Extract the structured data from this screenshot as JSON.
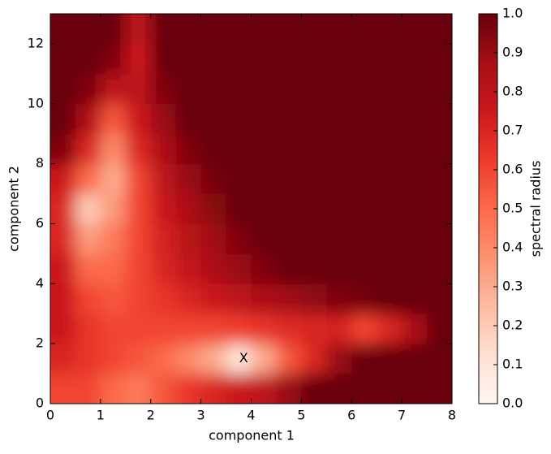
{
  "chart_data": {
    "type": "heatmap",
    "xlabel": "component 1",
    "ylabel": "component 2",
    "colorbar_label": "spectral radius",
    "x": [
      0.25,
      0.75,
      1.25,
      1.75,
      2.25,
      2.75,
      3.25,
      3.75,
      4.25,
      4.75,
      5.25,
      5.75,
      6.25,
      6.75,
      7.25,
      7.75
    ],
    "y": [
      0.5,
      1.5,
      2.5,
      3.5,
      4.5,
      5.5,
      6.5,
      7.5,
      8.5,
      9.5,
      10.5,
      11.5,
      12.5
    ],
    "z": [
      [
        0.6,
        0.6,
        0.5,
        0.45,
        0.55,
        0.65,
        0.7,
        0.75,
        0.8,
        0.9,
        1,
        1,
        1,
        1,
        1,
        1
      ],
      [
        0.7,
        0.65,
        0.6,
        0.55,
        0.5,
        0.4,
        0.3,
        0.1,
        0.3,
        0.55,
        0.7,
        0.9,
        1,
        1,
        1,
        1
      ],
      [
        0.75,
        0.65,
        0.6,
        0.6,
        0.6,
        0.6,
        0.6,
        0.62,
        0.65,
        0.68,
        0.7,
        0.72,
        0.6,
        0.7,
        0.85,
        1
      ],
      [
        0.75,
        0.6,
        0.55,
        0.6,
        0.65,
        0.7,
        0.75,
        0.8,
        0.85,
        0.88,
        0.92,
        0.95,
        0.97,
        1,
        1,
        1
      ],
      [
        0.75,
        0.5,
        0.5,
        0.6,
        0.7,
        0.78,
        0.85,
        0.9,
        0.95,
        1,
        1,
        1,
        1,
        1,
        1,
        1
      ],
      [
        0.7,
        0.35,
        0.45,
        0.6,
        0.72,
        0.82,
        0.88,
        0.95,
        1,
        1,
        1,
        1,
        1,
        1,
        1,
        1
      ],
      [
        0.7,
        0.2,
        0.35,
        0.6,
        0.75,
        0.85,
        0.93,
        1,
        1,
        1,
        1,
        1,
        1,
        1,
        1,
        1
      ],
      [
        0.75,
        0.5,
        0.3,
        0.6,
        0.8,
        0.9,
        0.97,
        1,
        1,
        1,
        1,
        1,
        1,
        1,
        1,
        1
      ],
      [
        0.95,
        0.7,
        0.4,
        0.7,
        0.85,
        0.95,
        1,
        1,
        1,
        1,
        1,
        1,
        1,
        1,
        1,
        1
      ],
      [
        1,
        0.85,
        0.55,
        0.75,
        0.9,
        1,
        1,
        1,
        1,
        1,
        1,
        1,
        1,
        1,
        1,
        1
      ],
      [
        1,
        0.95,
        0.8,
        0.8,
        0.95,
        1,
        1,
        1,
        1,
        1,
        1,
        1,
        1,
        1,
        1,
        1
      ],
      [
        1,
        1,
        0.95,
        0.75,
        1,
        1,
        1,
        1,
        1,
        1,
        1,
        1,
        1,
        1,
        1,
        1
      ],
      [
        1,
        1,
        1,
        0.8,
        1,
        1,
        1,
        1,
        1,
        1,
        1,
        1,
        1,
        1,
        1,
        1
      ]
    ],
    "xlim": [
      0,
      8
    ],
    "xticks": [
      0,
      1,
      2,
      3,
      4,
      5,
      6,
      7,
      8
    ],
    "ylim": [
      0,
      13
    ],
    "yticks": [
      0,
      2,
      4,
      6,
      8,
      10,
      12
    ],
    "zlim": [
      0,
      1
    ],
    "zticks": [
      {
        "value": 0,
        "label": "0.0"
      },
      {
        "value": 0.1,
        "label": "0.1"
      },
      {
        "value": 0.2,
        "label": "0.2"
      },
      {
        "value": 0.3,
        "label": "0.3"
      },
      {
        "value": 0.4,
        "label": "0.4"
      },
      {
        "value": 0.5,
        "label": "0.5"
      },
      {
        "value": 0.6,
        "label": "0.6"
      },
      {
        "value": 0.7,
        "label": "0.7"
      },
      {
        "value": 0.8,
        "label": "0.8"
      },
      {
        "value": 0.9,
        "label": "0.9"
      },
      {
        "value": 1,
        "label": "1.0"
      }
    ],
    "colormap": "Reds",
    "annotations": [
      {
        "text": "X",
        "x": 3.85,
        "y": 1.5
      }
    ]
  }
}
